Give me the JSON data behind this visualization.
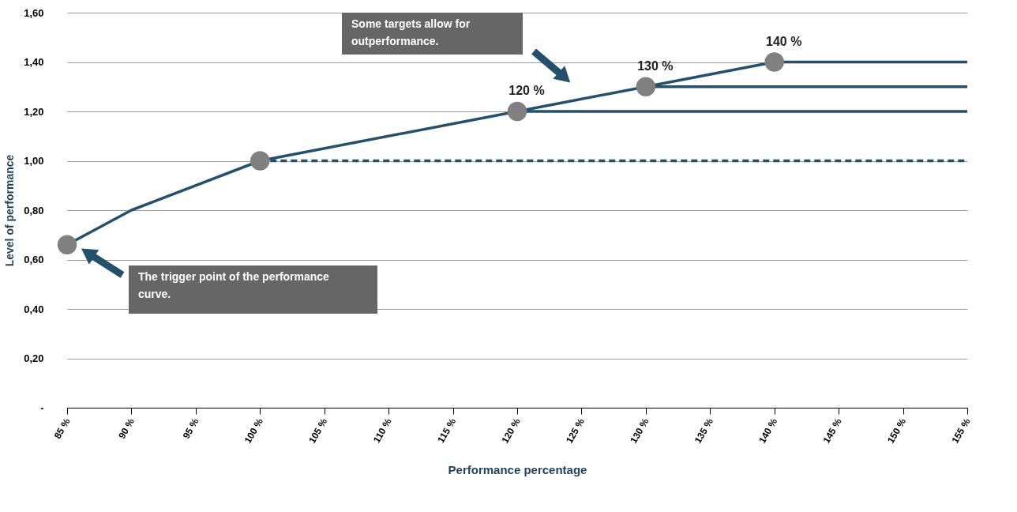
{
  "chart_data": {
    "type": "line",
    "xlabel": "Performance percentage",
    "ylabel": "Level of performance",
    "xlim": [
      85,
      155
    ],
    "ylim": [
      0,
      1.6
    ],
    "xticks": [
      {
        "value": 85,
        "label": "85 %"
      },
      {
        "value": 90,
        "label": "90 %"
      },
      {
        "value": 95,
        "label": "95 %"
      },
      {
        "value": 100,
        "label": "100 %"
      },
      {
        "value": 105,
        "label": "105 %"
      },
      {
        "value": 110,
        "label": "110 %"
      },
      {
        "value": 115,
        "label": "115 %"
      },
      {
        "value": 120,
        "label": "120 %"
      },
      {
        "value": 125,
        "label": "125 %"
      },
      {
        "value": 130,
        "label": "130 %"
      },
      {
        "value": 135,
        "label": "135 %"
      },
      {
        "value": 140,
        "label": "140 %"
      },
      {
        "value": 145,
        "label": "145 %"
      },
      {
        "value": 150,
        "label": "150 %"
      },
      {
        "value": 155,
        "label": "155 %"
      }
    ],
    "yticks": [
      {
        "value": 0,
        "label": "-"
      },
      {
        "value": 0.2,
        "label": "0,20"
      },
      {
        "value": 0.4,
        "label": "0,40"
      },
      {
        "value": 0.6,
        "label": "0,60"
      },
      {
        "value": 0.8,
        "label": "0,80"
      },
      {
        "value": 1.0,
        "label": "1,00"
      },
      {
        "value": 1.2,
        "label": "1,20"
      },
      {
        "value": 1.4,
        "label": "1,40"
      },
      {
        "value": 1.6,
        "label": "1,60"
      }
    ],
    "grid": "y",
    "series": [
      {
        "color": "#24506b",
        "line_style": "solid",
        "x": [
          85,
          90,
          100,
          120,
          130,
          140
        ],
        "values": [
          0.66,
          0.8,
          1.0,
          1.2,
          1.3,
          1.4
        ]
      },
      {
        "color": "#24506b",
        "line_style": "dashed",
        "x": [
          100,
          155
        ],
        "values": [
          1.0,
          1.0
        ]
      },
      {
        "color": "#24506b",
        "line_style": "solid",
        "x": [
          120,
          155
        ],
        "values": [
          1.2,
          1.2
        ]
      },
      {
        "color": "#24506b",
        "line_style": "solid",
        "x": [
          130,
          155
        ],
        "values": [
          1.3,
          1.3
        ]
      },
      {
        "color": "#24506b",
        "line_style": "solid",
        "x": [
          140,
          155
        ],
        "values": [
          1.4,
          1.4
        ]
      },
      {
        "type": "scatter",
        "color": "#808080",
        "marker": "circle",
        "x": [
          85,
          100,
          120,
          130,
          140
        ],
        "values": [
          0.66,
          1.0,
          1.2,
          1.3,
          1.4
        ],
        "value_labels": [
          null,
          null,
          "120 %",
          "130 %",
          "140 %"
        ]
      }
    ],
    "annotations": [
      "The trigger point of the performance curve.",
      "Some targets allow for outperformance."
    ]
  }
}
